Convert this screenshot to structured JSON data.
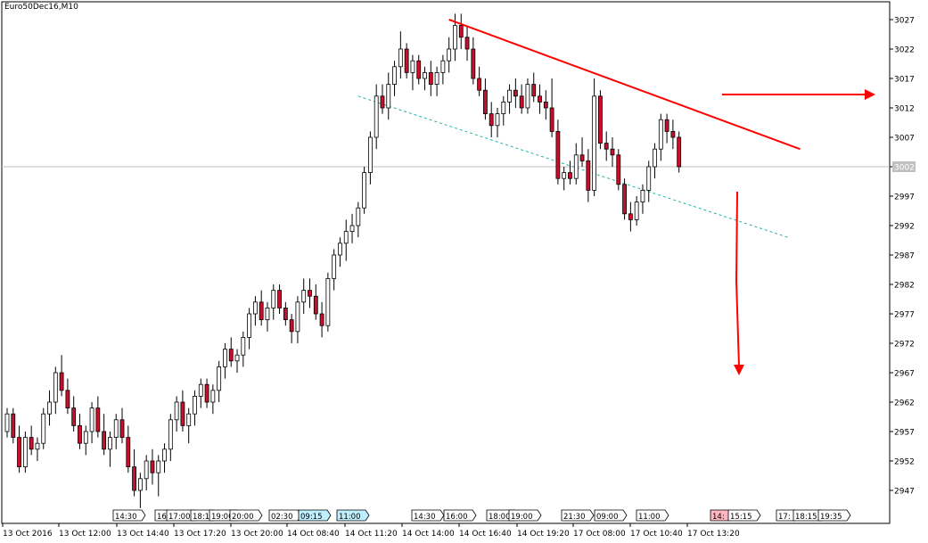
{
  "symbol_label": "Euro50Dec16,M10",
  "colors": {
    "up_candle": "#ffffff",
    "down_candle": "#c8102e",
    "candle_outline": "#000000",
    "trendline": "#ff0000",
    "channel_dotted": "#20b2aa",
    "arrow": "#ff0000",
    "price_line": "#c0c0c0",
    "current_price_box": "#c0c0c0",
    "time_highlight_cyan": "#bfefff",
    "time_highlight_pink": "#ffb6c1"
  },
  "chart_data": {
    "type": "candlestick",
    "title": "Euro50Dec16,M10",
    "ylim": [
      2942,
      3030
    ],
    "y_ticks": [
      3027,
      3022,
      3017,
      3012,
      3007,
      3002,
      2997,
      2992,
      2987,
      2982,
      2977,
      2972,
      2967,
      2962,
      2957,
      2952,
      2947
    ],
    "current_price": 3002,
    "x_labels": [
      "13 Oct 2016",
      "13 Oct 12:00",
      "13 Oct 14:40",
      "13 Oct 17:20",
      "13 Oct 20:00",
      "14 Oct 08:40",
      "14 Oct 11:20",
      "14 Oct 14:00",
      "14 Oct 16:40",
      "14 Oct 19:20",
      "17 Oct 08:00",
      "17 Oct 10:40",
      "17 Oct 13:20"
    ],
    "session_markers": [
      "14:30",
      "16",
      "17:00",
      "18:1",
      "19:00",
      "20:00",
      "02:30",
      "09:15",
      "11:00",
      "14:30",
      "16:00",
      "18:00",
      "19:00",
      "21:30",
      "09:00",
      "11:00",
      "14:",
      "15:15",
      "17:",
      "18:15",
      "19:35"
    ],
    "candles": [
      [
        2957,
        2961,
        2956,
        2960
      ],
      [
        2960,
        2961,
        2955,
        2956
      ],
      [
        2956,
        2958,
        2950,
        2951
      ],
      [
        2951,
        2957,
        2950,
        2956
      ],
      [
        2956,
        2958,
        2953,
        2954
      ],
      [
        2954,
        2956,
        2952,
        2955
      ],
      [
        2955,
        2961,
        2954,
        2960
      ],
      [
        2960,
        2964,
        2958,
        2962
      ],
      [
        2962,
        2968,
        2960,
        2967
      ],
      [
        2967,
        2970,
        2963,
        2964
      ],
      [
        2964,
        2966,
        2960,
        2961
      ],
      [
        2961,
        2963,
        2957,
        2958
      ],
      [
        2958,
        2960,
        2954,
        2955
      ],
      [
        2955,
        2958,
        2953,
        2957
      ],
      [
        2957,
        2962,
        2955,
        2961
      ],
      [
        2961,
        2963,
        2956,
        2957
      ],
      [
        2957,
        2960,
        2953,
        2954
      ],
      [
        2954,
        2957,
        2951,
        2956
      ],
      [
        2956,
        2960,
        2954,
        2959
      ],
      [
        2959,
        2961,
        2955,
        2956
      ],
      [
        2956,
        2958,
        2950,
        2951
      ],
      [
        2951,
        2954,
        2946,
        2947
      ],
      [
        2947,
        2950,
        2944,
        2949
      ],
      [
        2949,
        2953,
        2947,
        2952
      ],
      [
        2952,
        2954,
        2948,
        2950
      ],
      [
        2950,
        2953,
        2946,
        2952
      ],
      [
        2952,
        2955,
        2950,
        2954
      ],
      [
        2954,
        2960,
        2952,
        2959
      ],
      [
        2959,
        2963,
        2957,
        2962
      ],
      [
        2962,
        2964,
        2957,
        2958
      ],
      [
        2958,
        2961,
        2955,
        2960
      ],
      [
        2960,
        2964,
        2958,
        2963
      ],
      [
        2963,
        2966,
        2961,
        2965
      ],
      [
        2965,
        2966,
        2961,
        2962
      ],
      [
        2962,
        2965,
        2960,
        2964
      ],
      [
        2964,
        2969,
        2962,
        2968
      ],
      [
        2968,
        2972,
        2966,
        2971
      ],
      [
        2971,
        2973,
        2968,
        2969
      ],
      [
        2969,
        2971,
        2967,
        2970
      ],
      [
        2970,
        2974,
        2968,
        2973
      ],
      [
        2973,
        2978,
        2971,
        2977
      ],
      [
        2977,
        2980,
        2975,
        2979
      ],
      [
        2979,
        2981,
        2975,
        2976
      ],
      [
        2976,
        2979,
        2974,
        2978
      ],
      [
        2978,
        2982,
        2976,
        2981
      ],
      [
        2981,
        2982,
        2977,
        2978
      ],
      [
        2978,
        2979,
        2975,
        2976
      ],
      [
        2976,
        2977,
        2972,
        2974
      ],
      [
        2974,
        2980,
        2972,
        2979
      ],
      [
        2979,
        2983,
        2977,
        2981
      ],
      [
        2981,
        2983,
        2978,
        2980
      ],
      [
        2980,
        2982,
        2976,
        2977
      ],
      [
        2977,
        2979,
        2973,
        2975
      ],
      [
        2975,
        2984,
        2974,
        2983
      ],
      [
        2983,
        2988,
        2981,
        2987
      ],
      [
        2987,
        2990,
        2985,
        2989
      ],
      [
        2989,
        2993,
        2986,
        2991
      ],
      [
        2991,
        2994,
        2989,
        2992
      ],
      [
        2992,
        2996,
        2990,
        2995
      ],
      [
        2995,
        3002,
        2994,
        3001
      ],
      [
        3001,
        3008,
        2999,
        3007
      ],
      [
        3007,
        3016,
        3005,
        3014
      ],
      [
        3014,
        3016,
        3011,
        3012
      ],
      [
        3012,
        3018,
        3010,
        3016
      ],
      [
        3016,
        3020,
        3014,
        3019
      ],
      [
        3019,
        3025,
        3017,
        3022
      ],
      [
        3022,
        3023,
        3017,
        3018
      ],
      [
        3018,
        3021,
        3015,
        3020
      ],
      [
        3020,
        3021,
        3016,
        3017
      ],
      [
        3017,
        3019,
        3015,
        3018
      ],
      [
        3018,
        3020,
        3014,
        3016
      ],
      [
        3016,
        3019,
        3014,
        3018
      ],
      [
        3018,
        3021,
        3016,
        3020
      ],
      [
        3020,
        3024,
        3018,
        3022
      ],
      [
        3022,
        3028,
        3020,
        3026
      ],
      [
        3026,
        3028,
        3022,
        3024
      ],
      [
        3024,
        3026,
        3020,
        3022
      ],
      [
        3022,
        3024,
        3016,
        3017
      ],
      [
        3017,
        3019,
        3014,
        3015
      ],
      [
        3015,
        3017,
        3010,
        3011
      ],
      [
        3011,
        3013,
        3007,
        3009
      ],
      [
        3009,
        3012,
        3007,
        3011
      ],
      [
        3011,
        3014,
        3009,
        3013
      ],
      [
        3013,
        3016,
        3011,
        3015
      ],
      [
        3015,
        3017,
        3012,
        3014
      ],
      [
        3014,
        3016,
        3011,
        3012
      ],
      [
        3012,
        3017,
        3011,
        3016
      ],
      [
        3016,
        3018,
        3013,
        3014
      ],
      [
        3014,
        3016,
        3011,
        3013
      ],
      [
        3013,
        3015,
        3010,
        3012
      ],
      [
        3012,
        3017,
        3007,
        3008
      ],
      [
        3008,
        3010,
        2999,
        3000
      ],
      [
        3000,
        3002,
        2998,
        3001
      ],
      [
        3001,
        3003,
        2999,
        3000
      ],
      [
        3000,
        3006,
        2999,
        3004
      ],
      [
        3004,
        3007,
        3002,
        3003
      ],
      [
        3003,
        3005,
        2996,
        2998
      ],
      [
        2998,
        3017,
        2997,
        3014
      ],
      [
        3014,
        3015,
        3005,
        3006
      ],
      [
        3006,
        3008,
        3003,
        3005
      ],
      [
        3005,
        3007,
        3002,
        3004
      ],
      [
        3004,
        3005,
        2998,
        2999
      ],
      [
        2999,
        3000,
        2993,
        2994
      ],
      [
        2994,
        2996,
        2991,
        2993
      ],
      [
        2993,
        2997,
        2992,
        2996
      ],
      [
        2996,
        2999,
        2994,
        2998
      ],
      [
        2998,
        3003,
        2996,
        3002
      ],
      [
        3002,
        3006,
        3000,
        3005
      ],
      [
        3005,
        3011,
        3003,
        3010
      ],
      [
        3010,
        3011,
        3006,
        3008
      ],
      [
        3008,
        3010,
        3005,
        3007
      ],
      [
        3007,
        3008,
        3001,
        3002
      ]
    ],
    "trendlines": [
      {
        "from": [
          73,
          3027
        ],
        "to": [
          131,
          3005
        ]
      }
    ],
    "channel_line": {
      "from": [
        58,
        3014
      ],
      "to": [
        129,
        2990
      ]
    },
    "arrows": [
      "right",
      "down"
    ]
  }
}
